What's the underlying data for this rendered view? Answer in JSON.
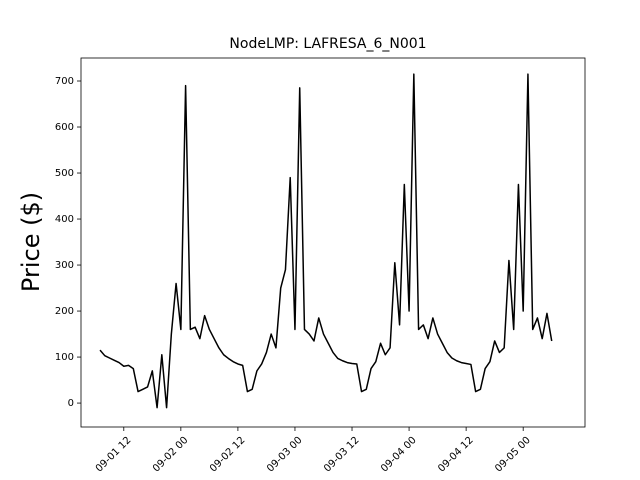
{
  "chart_data": {
    "type": "line",
    "title": "NodeLMP: LAFRESA_6_N001",
    "y_label": "Price ($)",
    "x": [
      "09-01 07",
      "09-01 08",
      "09-01 09",
      "09-01 10",
      "09-01 11",
      "09-01 12",
      "09-01 13",
      "09-01 14",
      "09-01 15",
      "09-01 16",
      "09-01 17",
      "09-01 18",
      "09-01 19",
      "09-01 20",
      "09-01 21",
      "09-01 22",
      "09-01 23",
      "09-02 00",
      "09-02 01",
      "09-02 02",
      "09-02 03",
      "09-02 04",
      "09-02 05",
      "09-02 06",
      "09-02 07",
      "09-02 08",
      "09-02 09",
      "09-02 10",
      "09-02 11",
      "09-02 12",
      "09-02 13",
      "09-02 14",
      "09-02 15",
      "09-02 16",
      "09-02 17",
      "09-02 18",
      "09-02 19",
      "09-02 20",
      "09-02 21",
      "09-02 22",
      "09-02 23",
      "09-03 00",
      "09-03 01",
      "09-03 02",
      "09-03 03",
      "09-03 04",
      "09-03 05",
      "09-03 06",
      "09-03 07",
      "09-03 08",
      "09-03 09",
      "09-03 10",
      "09-03 11",
      "09-03 12",
      "09-03 13",
      "09-03 14",
      "09-03 15",
      "09-03 16",
      "09-03 17",
      "09-03 18",
      "09-03 19",
      "09-03 20",
      "09-03 21",
      "09-03 22",
      "09-03 23",
      "09-04 00",
      "09-04 01",
      "09-04 02",
      "09-04 03",
      "09-04 04",
      "09-04 05",
      "09-04 06",
      "09-04 07",
      "09-04 08",
      "09-04 09",
      "09-04 10",
      "09-04 11",
      "09-04 12",
      "09-04 13",
      "09-04 14",
      "09-04 15",
      "09-04 16",
      "09-04 17",
      "09-04 18",
      "09-04 19",
      "09-04 20",
      "09-04 21",
      "09-04 22",
      "09-04 23",
      "09-05 00",
      "09-05 01",
      "09-05 02",
      "09-05 03",
      "09-05 04",
      "09-05 05",
      "09-05 06"
    ],
    "series": [
      {
        "name": "LAFRESA_6_N001",
        "color": "#000000",
        "values": [
          115,
          103,
          98,
          93,
          88,
          80,
          82,
          75,
          25,
          30,
          35,
          70,
          -10,
          105,
          -10,
          150,
          260,
          160,
          690,
          160,
          165,
          140,
          190,
          160,
          140,
          120,
          105,
          97,
          90,
          85,
          82,
          25,
          30,
          70,
          85,
          110,
          150,
          120,
          250,
          290,
          490,
          160,
          685,
          160,
          150,
          135,
          185,
          150,
          130,
          110,
          97,
          92,
          88,
          86,
          85,
          25,
          30,
          75,
          90,
          130,
          105,
          120,
          305,
          170,
          475,
          200,
          715,
          160,
          170,
          140,
          185,
          150,
          130,
          110,
          98,
          92,
          88,
          86,
          84,
          25,
          30,
          75,
          90,
          135,
          110,
          120,
          310,
          160,
          475,
          200,
          715,
          160,
          185,
          140,
          195,
          135
        ]
      }
    ],
    "xlim": [
      "09-01 03",
      "09-05 13"
    ],
    "xticks": [
      "09-01 12",
      "09-02 00",
      "09-02 12",
      "09-03 00",
      "09-03 12",
      "09-04 00",
      "09-04 12",
      "09-05 00"
    ],
    "ylim": [
      -52,
      750
    ],
    "yticks": [
      0,
      100,
      200,
      300,
      400,
      500,
      600,
      700
    ]
  }
}
